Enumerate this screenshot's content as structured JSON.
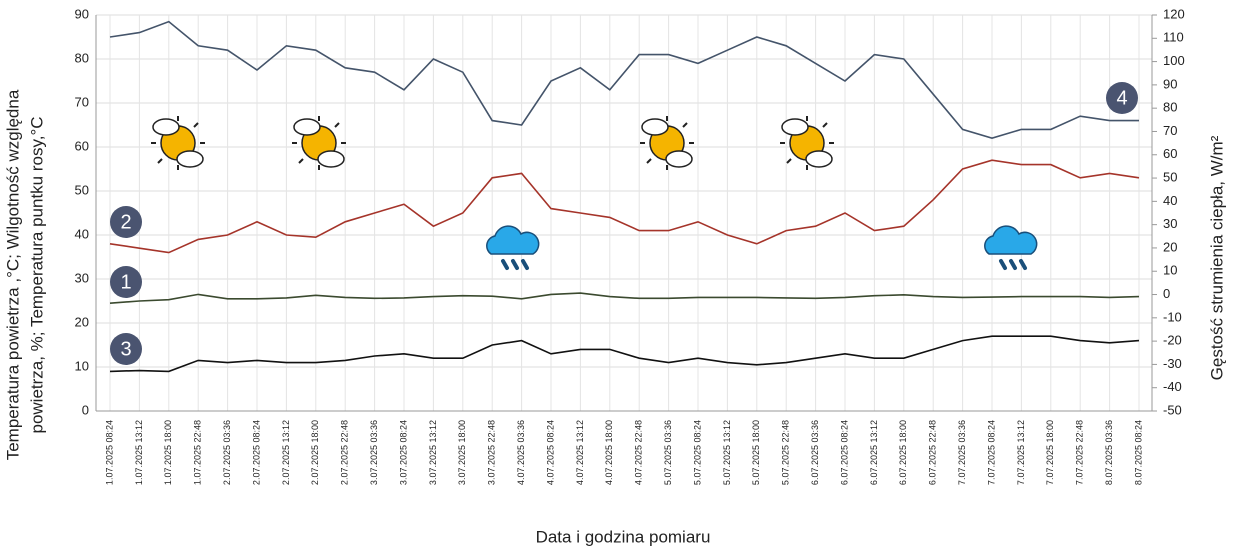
{
  "chart_data": {
    "type": "line",
    "xlabel": "Data i godzina pomiaru",
    "ylabel": [
      "Temperatura powietrza ,°C; Wilgotność względna",
      "powietrza, %; Temperatura puntku rosy,°C"
    ],
    "y2label": "Gęstość strumienia ciepła, W/m²",
    "categories": [
      "1.07.2025 08:24",
      "1.07.2025 13:12",
      "1.07.2025 18:00",
      "1.07.2025 22:48",
      "2.07.2025 03:36",
      "2.07.2025 08:24",
      "2.07.2025 13:12",
      "2.07.2025 18:00",
      "2.07.2025 22:48",
      "3.07.2025 03:36",
      "3.07.2025 08:24",
      "3.07.2025 13:12",
      "3.07.2025 18:00",
      "3.07.2025 22:48",
      "4.07.2025 03:36",
      "4.07.2025 08:24",
      "4.07.2025 13:12",
      "4.07.2025 18:00",
      "4.07.2025 22:48",
      "5.07.2025 03:36",
      "5.07.2025 08:24",
      "5.07.2025 13:12",
      "5.07.2025 18:00",
      "5.07.2025 22:48",
      "6.07.2025 03:36",
      "6.07.2025 08:24",
      "6.07.2025 13:12",
      "6.07.2025 18:00",
      "6.07.2025 22:48",
      "7.07.2025 03:36",
      "7.07.2025 08:24",
      "7.07.2025 13:12",
      "7.07.2025 18:00",
      "7.07.2025 22:48",
      "8.07.2025 03:36",
      "8.07.2025 08:24"
    ],
    "series": [
      {
        "name": "4",
        "color": "#44546a",
        "values": [
          85,
          86,
          88.5,
          83,
          82,
          77.5,
          83,
          82,
          78,
          77,
          73,
          80,
          77,
          66,
          65,
          75,
          78,
          73,
          81,
          81,
          79,
          82,
          85,
          83,
          79,
          75,
          81,
          80,
          72,
          64,
          62,
          64,
          64,
          67,
          66,
          66
        ]
      },
      {
        "name": "2",
        "color": "#a5342a",
        "values": [
          38,
          37,
          36,
          39,
          40,
          43,
          40,
          39.5,
          43,
          45,
          47,
          42,
          45,
          53,
          54,
          46,
          45,
          44,
          41,
          41,
          43,
          40,
          38,
          41,
          42,
          45,
          41,
          42,
          48,
          55,
          57,
          56,
          56,
          53,
          54,
          53
        ]
      },
      {
        "name": "1",
        "color": "#3b4a2f",
        "values": [
          24.5,
          25,
          25.3,
          26.5,
          25.5,
          25.5,
          25.7,
          26.3,
          25.8,
          25.6,
          25.7,
          26,
          26.2,
          26.1,
          25.5,
          26.5,
          26.8,
          26,
          25.6,
          25.6,
          25.8,
          25.8,
          25.8,
          25.7,
          25.6,
          25.8,
          26.2,
          26.4,
          26,
          25.8,
          25.9,
          26,
          26,
          26,
          25.8,
          26
        ]
      },
      {
        "name": "3",
        "color": "#111111",
        "values": [
          9,
          9.2,
          9,
          11.5,
          11,
          11.5,
          11,
          11,
          11.5,
          12.5,
          13,
          12,
          12,
          15,
          16,
          13,
          14,
          14,
          12,
          11,
          12,
          11,
          10.5,
          11,
          12,
          13,
          12,
          12,
          14,
          16,
          17,
          17,
          17,
          16,
          15.5,
          16
        ]
      }
    ],
    "ylim": [
      0,
      90
    ],
    "yticks": [
      0,
      10,
      20,
      30,
      40,
      50,
      60,
      70,
      80,
      90
    ],
    "y2lim": [
      -50,
      120
    ],
    "y2ticks": [
      -50,
      -40,
      -30,
      -20,
      -10,
      0,
      10,
      20,
      30,
      40,
      50,
      60,
      70,
      80,
      90,
      100,
      110,
      120
    ],
    "grid": true
  }
}
